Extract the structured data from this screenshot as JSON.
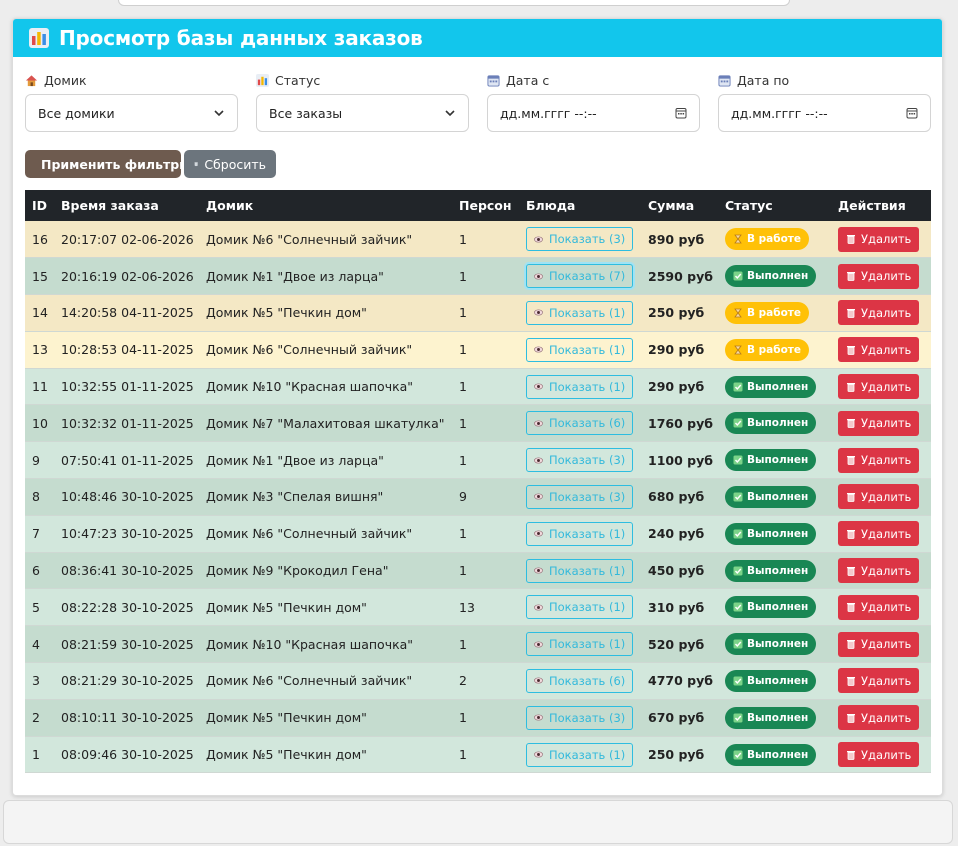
{
  "header": {
    "title": "Просмотр базы данных заказов"
  },
  "filters": {
    "house": {
      "label": "Домик",
      "value": "Все домики"
    },
    "status": {
      "label": "Статус",
      "value": "Все заказы"
    },
    "date_from": {
      "label": "Дата с",
      "placeholder": "дд.мм.гггг --:--"
    },
    "date_to": {
      "label": "Дата по",
      "placeholder": "дд.мм.гггг --:--"
    }
  },
  "actions": {
    "apply": "Применить фильтры",
    "reset": "Сбросить"
  },
  "table": {
    "columns": [
      "ID",
      "Время заказа",
      "Домик",
      "Персон",
      "Блюда",
      "Сумма",
      "Статус",
      "Действия"
    ],
    "rows": [
      {
        "id": "16",
        "time": "20:17:07 02-06-2026",
        "house": "Домик №6 \"Солнечный зайчик\"",
        "persons": "1",
        "dishes": "Показать (3)",
        "sum": "890 руб",
        "status": "В работе",
        "action": "Удалить"
      },
      {
        "id": "15",
        "time": "20:16:19 02-06-2026",
        "house": "Домик №1 \"Двое из ларца\"",
        "persons": "1",
        "dishes": "Показать (7)",
        "sum": "2590 руб",
        "status": "Выполнен",
        "action": "Удалить"
      },
      {
        "id": "14",
        "time": "14:20:58 04-11-2025",
        "house": "Домик №5 \"Печкин дом\"",
        "persons": "1",
        "dishes": "Показать (1)",
        "sum": "250 руб",
        "status": "В работе",
        "action": "Удалить"
      },
      {
        "id": "13",
        "time": "10:28:53 04-11-2025",
        "house": "Домик №6 \"Солнечный зайчик\"",
        "persons": "1",
        "dishes": "Показать (1)",
        "sum": "290 руб",
        "status": "В работе",
        "action": "Удалить"
      },
      {
        "id": "11",
        "time": "10:32:55 01-11-2025",
        "house": "Домик №10 \"Красная шапочка\"",
        "persons": "1",
        "dishes": "Показать (1)",
        "sum": "290 руб",
        "status": "Выполнен",
        "action": "Удалить"
      },
      {
        "id": "10",
        "time": "10:32:32 01-11-2025",
        "house": "Домик №7 \"Малахитовая шкатулка\"",
        "persons": "1",
        "dishes": "Показать (6)",
        "sum": "1760 руб",
        "status": "Выполнен",
        "action": "Удалить"
      },
      {
        "id": "9",
        "time": "07:50:41 01-11-2025",
        "house": "Домик №1 \"Двое из ларца\"",
        "persons": "1",
        "dishes": "Показать (3)",
        "sum": "1100 руб",
        "status": "Выполнен",
        "action": "Удалить"
      },
      {
        "id": "8",
        "time": "10:48:46 30-10-2025",
        "house": "Домик №3 \"Спелая вишня\"",
        "persons": "9",
        "dishes": "Показать (3)",
        "sum": "680 руб",
        "status": "Выполнен",
        "action": "Удалить"
      },
      {
        "id": "7",
        "time": "10:47:23 30-10-2025",
        "house": "Домик №6 \"Солнечный зайчик\"",
        "persons": "1",
        "dishes": "Показать (1)",
        "sum": "240 руб",
        "status": "Выполнен",
        "action": "Удалить"
      },
      {
        "id": "6",
        "time": "08:36:41 30-10-2025",
        "house": "Домик №9 \"Крокодил Гена\"",
        "persons": "1",
        "dishes": "Показать (1)",
        "sum": "450 руб",
        "status": "Выполнен",
        "action": "Удалить"
      },
      {
        "id": "5",
        "time": "08:22:28 30-10-2025",
        "house": "Домик №5 \"Печкин дом\"",
        "persons": "13",
        "dishes": "Показать (1)",
        "sum": "310 руб",
        "status": "Выполнен",
        "action": "Удалить"
      },
      {
        "id": "4",
        "time": "08:21:59 30-10-2025",
        "house": "Домик №10 \"Красная шапочка\"",
        "persons": "1",
        "dishes": "Показать (1)",
        "sum": "520 руб",
        "status": "Выполнен",
        "action": "Удалить"
      },
      {
        "id": "3",
        "time": "08:21:29 30-10-2025",
        "house": "Домик №6 \"Солнечный зайчик\"",
        "persons": "2",
        "dishes": "Показать (6)",
        "sum": "4770 руб",
        "status": "Выполнен",
        "action": "Удалить"
      },
      {
        "id": "2",
        "time": "08:10:11 30-10-2025",
        "house": "Домик №5 \"Печкин дом\"",
        "persons": "1",
        "dishes": "Показать (3)",
        "sum": "670 руб",
        "status": "Выполнен",
        "action": "Удалить"
      },
      {
        "id": "1",
        "time": "08:09:46 30-10-2025",
        "house": "Домик №5 \"Печкин дом\"",
        "persons": "1",
        "dishes": "Показать (1)",
        "sum": "250 руб",
        "status": "Выполнен",
        "action": "Удалить"
      }
    ]
  },
  "colors": {
    "header": "#12c6ec",
    "done": "#198754",
    "in_progress": "#ffc107",
    "delete": "#dc3545",
    "apply": "#6e5b4f"
  },
  "icons": {
    "title": "bar-chart-icon",
    "house": "house-icon",
    "status": "bar-chart-icon",
    "date": "calendar-icon",
    "apply": "magnifier-icon",
    "reset": "trash-icon",
    "show": "eye-icon",
    "done": "check-icon",
    "work": "hourglass-icon",
    "delete": "trash-icon"
  }
}
